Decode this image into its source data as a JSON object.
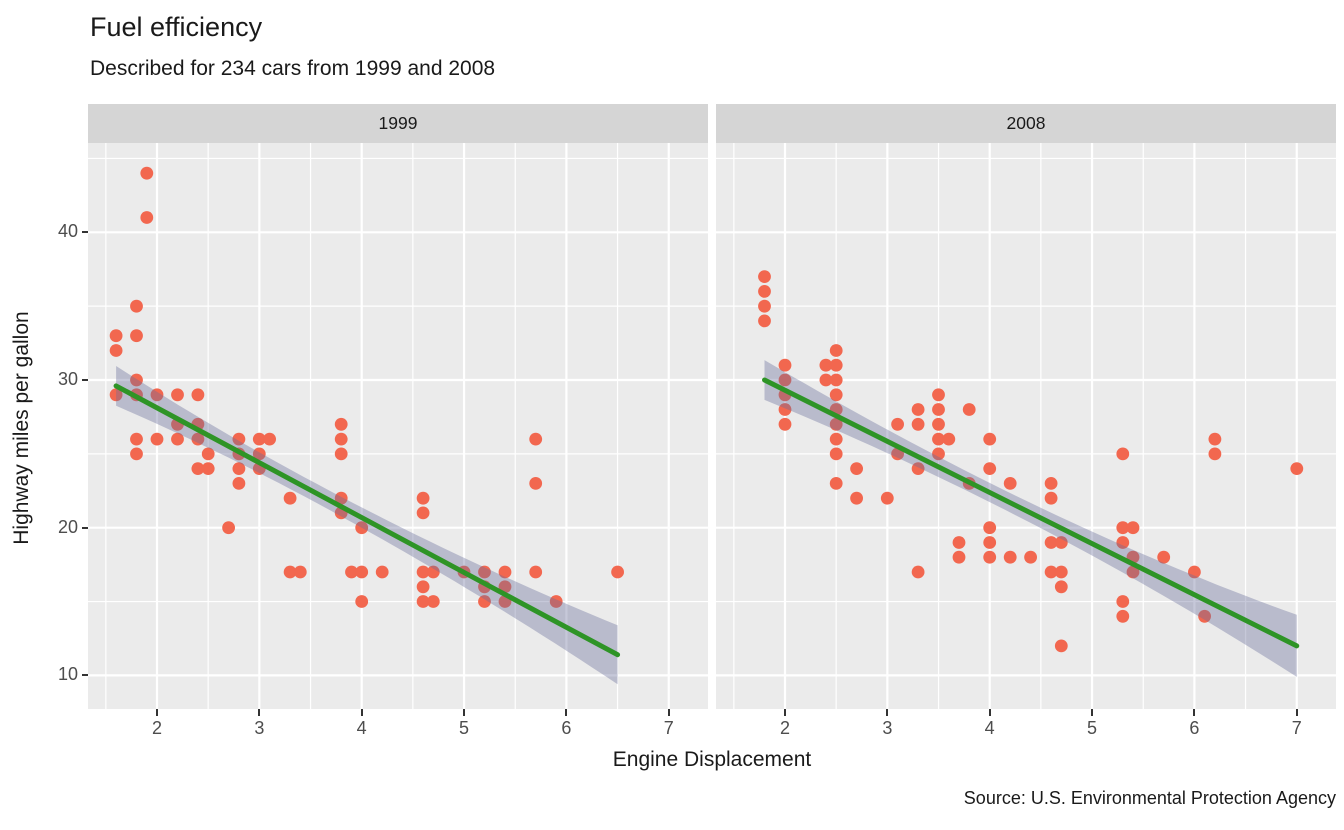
{
  "title": "Fuel efficiency",
  "subtitle": "Described for 234 cars from 1999 and 2008",
  "caption": "Source: U.S. Environmental Protection Agency",
  "colors": {
    "point": "#F2674F",
    "trend_line": "#2E9426",
    "ribbon": "rgba(105,110,155,0.38)",
    "panel_background": "#EBEBEB",
    "strip_background": "#D5D5D5",
    "gridline": "#FFFFFF",
    "tick_text": "#4D4D4D",
    "text": "#1A1A1A"
  },
  "facets": [
    {
      "label": "1999"
    },
    {
      "label": "2008"
    }
  ],
  "chart_data": [
    {
      "type": "scatter",
      "facet": "1999",
      "xlabel": "Engine Displacement",
      "ylabel": "Highway miles per gallon",
      "xlim": [
        1.33,
        7.39
      ],
      "ylim": [
        7.7,
        46.1
      ],
      "x_major_ticks": [
        2,
        3,
        4,
        5,
        6,
        7
      ],
      "x_minor_ticks": [
        1.5,
        2.5,
        3.5,
        4.5,
        5.5,
        6.5
      ],
      "y_major_ticks": [
        10,
        20,
        30,
        40
      ],
      "y_minor_ticks": [
        15,
        25,
        35,
        45
      ],
      "grid": true,
      "legend": "none",
      "points": [
        [
          1.6,
          33
        ],
        [
          1.6,
          32
        ],
        [
          1.6,
          29
        ],
        [
          1.8,
          35
        ],
        [
          1.8,
          33
        ],
        [
          1.8,
          30
        ],
        [
          1.8,
          29
        ],
        [
          1.8,
          26
        ],
        [
          1.8,
          25
        ],
        [
          1.9,
          44
        ],
        [
          1.9,
          41
        ],
        [
          2.0,
          29
        ],
        [
          2.0,
          26
        ],
        [
          2.2,
          29
        ],
        [
          2.2,
          27
        ],
        [
          2.2,
          26
        ],
        [
          2.4,
          29
        ],
        [
          2.4,
          27
        ],
        [
          2.4,
          26
        ],
        [
          2.4,
          24
        ],
        [
          2.5,
          25
        ],
        [
          2.5,
          24
        ],
        [
          2.7,
          20
        ],
        [
          2.8,
          26
        ],
        [
          2.8,
          25
        ],
        [
          2.8,
          24
        ],
        [
          2.8,
          23
        ],
        [
          3.0,
          26
        ],
        [
          3.0,
          25
        ],
        [
          3.0,
          24
        ],
        [
          3.1,
          26
        ],
        [
          3.3,
          22
        ],
        [
          3.3,
          17
        ],
        [
          3.4,
          17
        ],
        [
          3.8,
          27
        ],
        [
          3.8,
          26
        ],
        [
          3.8,
          25
        ],
        [
          3.8,
          22
        ],
        [
          3.8,
          21
        ],
        [
          3.9,
          17
        ],
        [
          4.0,
          20
        ],
        [
          4.0,
          17
        ],
        [
          4.0,
          15
        ],
        [
          4.2,
          17
        ],
        [
          4.6,
          22
        ],
        [
          4.6,
          21
        ],
        [
          4.6,
          17
        ],
        [
          4.6,
          16
        ],
        [
          4.6,
          15
        ],
        [
          4.7,
          17
        ],
        [
          4.7,
          15
        ],
        [
          5.0,
          17
        ],
        [
          5.2,
          17
        ],
        [
          5.2,
          16
        ],
        [
          5.2,
          15
        ],
        [
          5.4,
          17
        ],
        [
          5.4,
          16
        ],
        [
          5.4,
          15
        ],
        [
          5.7,
          26
        ],
        [
          5.7,
          23
        ],
        [
          5.7,
          17
        ],
        [
          5.9,
          15
        ],
        [
          6.5,
          17
        ]
      ],
      "trend": {
        "x0": 1.6,
        "y0": 29.6,
        "x1": 6.5,
        "y1": 11.4,
        "ci_mid_x": 3.5,
        "ci_halfwidth_mid": 0.65,
        "ci_halfwidth_start": 1.35,
        "ci_halfwidth_end": 2.0
      }
    },
    {
      "type": "scatter",
      "facet": "2008",
      "xlabel": "Engine Displacement",
      "ylabel": "Highway miles per gallon",
      "xlim": [
        1.33,
        7.39
      ],
      "ylim": [
        7.7,
        46.1
      ],
      "x_major_ticks": [
        2,
        3,
        4,
        5,
        6,
        7
      ],
      "x_minor_ticks": [
        1.5,
        2.5,
        3.5,
        4.5,
        5.5,
        6.5
      ],
      "y_major_ticks": [
        10,
        20,
        30,
        40
      ],
      "y_minor_ticks": [
        15,
        25,
        35,
        45
      ],
      "grid": true,
      "legend": "none",
      "points": [
        [
          1.8,
          37
        ],
        [
          1.8,
          36
        ],
        [
          1.8,
          35
        ],
        [
          1.8,
          34
        ],
        [
          2.0,
          31
        ],
        [
          2.0,
          30
        ],
        [
          2.0,
          29
        ],
        [
          2.0,
          28
        ],
        [
          2.0,
          27
        ],
        [
          2.4,
          31
        ],
        [
          2.4,
          30
        ],
        [
          2.5,
          32
        ],
        [
          2.5,
          31
        ],
        [
          2.5,
          30
        ],
        [
          2.5,
          29
        ],
        [
          2.5,
          28
        ],
        [
          2.5,
          27
        ],
        [
          2.5,
          26
        ],
        [
          2.5,
          25
        ],
        [
          2.5,
          23
        ],
        [
          2.7,
          24
        ],
        [
          2.7,
          22
        ],
        [
          3.0,
          22
        ],
        [
          3.1,
          27
        ],
        [
          3.1,
          25
        ],
        [
          3.3,
          28
        ],
        [
          3.3,
          27
        ],
        [
          3.3,
          24
        ],
        [
          3.3,
          17
        ],
        [
          3.5,
          29
        ],
        [
          3.5,
          28
        ],
        [
          3.5,
          27
        ],
        [
          3.5,
          26
        ],
        [
          3.5,
          25
        ],
        [
          3.6,
          26
        ],
        [
          3.7,
          19
        ],
        [
          3.7,
          18
        ],
        [
          3.8,
          28
        ],
        [
          3.8,
          23
        ],
        [
          4.0,
          26
        ],
        [
          4.0,
          24
        ],
        [
          4.0,
          20
        ],
        [
          4.0,
          19
        ],
        [
          4.0,
          18
        ],
        [
          4.2,
          23
        ],
        [
          4.2,
          18
        ],
        [
          4.4,
          18
        ],
        [
          4.6,
          23
        ],
        [
          4.6,
          22
        ],
        [
          4.6,
          19
        ],
        [
          4.6,
          17
        ],
        [
          4.7,
          19
        ],
        [
          4.7,
          17
        ],
        [
          4.7,
          16
        ],
        [
          4.7,
          12
        ],
        [
          5.3,
          25
        ],
        [
          5.3,
          20
        ],
        [
          5.3,
          19
        ],
        [
          5.3,
          15
        ],
        [
          5.3,
          14
        ],
        [
          5.4,
          20
        ],
        [
          5.4,
          18
        ],
        [
          5.4,
          17
        ],
        [
          5.7,
          18
        ],
        [
          6.0,
          17
        ],
        [
          6.1,
          14
        ],
        [
          6.2,
          26
        ],
        [
          6.2,
          25
        ],
        [
          7.0,
          24
        ]
      ],
      "trend": {
        "x0": 1.8,
        "y0": 30.0,
        "x1": 7.0,
        "y1": 12.0,
        "ci_mid_x": 4.0,
        "ci_halfwidth_mid": 0.65,
        "ci_halfwidth_start": 1.35,
        "ci_halfwidth_end": 2.1
      }
    }
  ],
  "x_axis": {
    "label": "Engine Displacement",
    "tick_labels": [
      "2",
      "3",
      "4",
      "5",
      "6",
      "7"
    ]
  },
  "y_axis": {
    "label": "Highway miles per gallon",
    "tick_labels": [
      "10",
      "20",
      "30",
      "40"
    ]
  }
}
